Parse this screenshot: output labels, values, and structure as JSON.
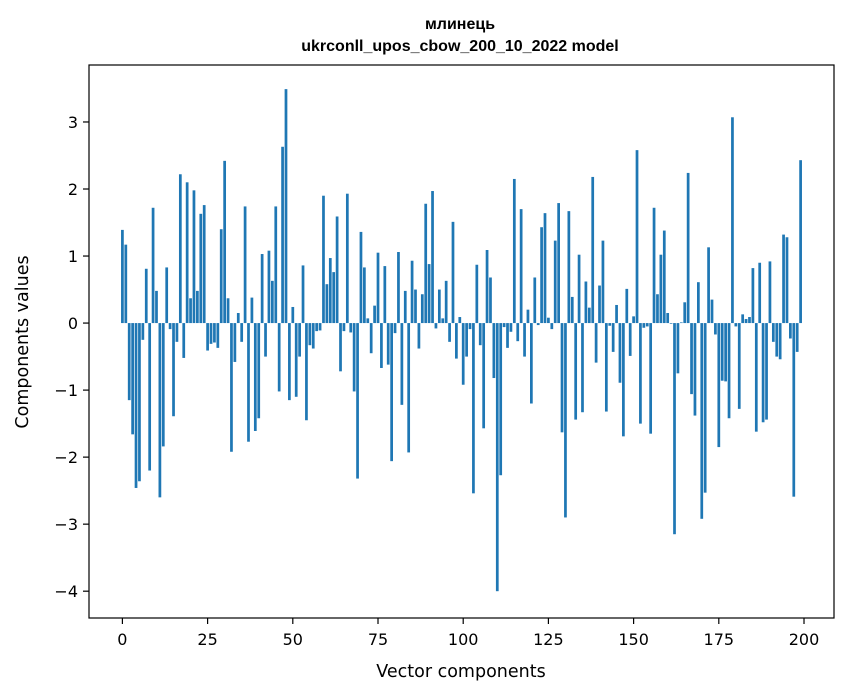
{
  "chart_data": {
    "type": "bar",
    "title_line1": "млинець",
    "title_line2": "ukrconll_upos_cbow_200_10_2022 model",
    "xlabel": "Vector components",
    "ylabel": "Components values",
    "xlim": [
      -9.8,
      208.8
    ],
    "ylim": [
      -4.4,
      3.85
    ],
    "x_ticks": [
      0,
      25,
      50,
      75,
      100,
      125,
      150,
      175,
      200
    ],
    "x_tick_labels": [
      "0",
      "25",
      "50",
      "75",
      "100",
      "125",
      "150",
      "175",
      "200"
    ],
    "y_ticks": [
      3,
      2,
      1,
      0,
      -1,
      -2,
      -3,
      -4
    ],
    "y_tick_labels": [
      "3",
      "2",
      "1",
      "0",
      "−1",
      "−2",
      "−3",
      "−4"
    ],
    "bar_color": "#1f77b4",
    "values": [
      1.39,
      1.17,
      -1.15,
      -1.66,
      -2.46,
      -2.36,
      -0.25,
      0.81,
      -2.2,
      1.72,
      0.48,
      -2.6,
      -1.84,
      0.83,
      -0.09,
      -1.39,
      -0.28,
      2.22,
      -0.52,
      2.1,
      0.37,
      1.98,
      0.48,
      1.63,
      1.76,
      -0.41,
      -0.31,
      -0.29,
      -0.37,
      1.4,
      2.42,
      0.37,
      -1.92,
      -0.58,
      0.15,
      -0.28,
      1.74,
      -1.77,
      0.38,
      -1.61,
      -1.42,
      1.03,
      -0.5,
      1.08,
      0.63,
      1.74,
      -1.02,
      2.63,
      3.49,
      -1.15,
      0.24,
      -1.1,
      -0.5,
      0.86,
      -1.45,
      -0.33,
      -0.38,
      -0.12,
      -0.11,
      1.9,
      0.58,
      0.97,
      0.76,
      1.59,
      -0.72,
      -0.12,
      1.93,
      -0.14,
      -1.02,
      -2.32,
      1.36,
      0.83,
      0.07,
      -0.45,
      0.26,
      1.05,
      -0.67,
      0.85,
      -0.62,
      -2.06,
      -0.15,
      1.06,
      -1.22,
      0.48,
      -1.93,
      0.93,
      0.5,
      -0.38,
      0.43,
      1.78,
      0.88,
      1.97,
      -0.08,
      0.5,
      0.07,
      0.63,
      -0.28,
      1.51,
      -0.53,
      0.09,
      -0.92,
      -0.5,
      -0.09,
      -2.54,
      0.87,
      -0.33,
      -1.57,
      1.09,
      0.68,
      -0.82,
      -4.0,
      -2.27,
      -0.06,
      -0.37,
      -0.13,
      2.15,
      -0.27,
      1.7,
      -0.5,
      0.2,
      -1.2,
      0.68,
      -0.03,
      1.43,
      1.64,
      0.08,
      -0.09,
      1.23,
      1.79,
      -1.63,
      -2.9,
      1.67,
      0.39,
      -1.44,
      1.02,
      -1.33,
      0.62,
      0.23,
      2.18,
      -0.59,
      0.56,
      1.23,
      -1.32,
      -0.04,
      -0.43,
      0.27,
      -0.89,
      -1.69,
      0.51,
      -0.49,
      0.1,
      2.58,
      -1.5,
      -0.07,
      -0.05,
      -1.65,
      1.72,
      0.43,
      1.02,
      1.38,
      0.15,
      -0.01,
      -3.15,
      -0.75,
      0.01,
      0.31,
      2.24,
      -1.06,
      -1.38,
      0.61,
      -2.92,
      -2.53,
      1.13,
      0.35,
      -0.17,
      -1.85,
      -0.86,
      -0.87,
      -1.42,
      3.07,
      -0.05,
      -1.28,
      0.13,
      0.06,
      0.09,
      0.82,
      -1.62,
      0.9,
      -1.48,
      -1.44,
      0.92,
      -0.28,
      -0.5,
      -0.54,
      1.32,
      1.28,
      -0.23,
      -2.59,
      -0.43,
      2.43
    ]
  }
}
